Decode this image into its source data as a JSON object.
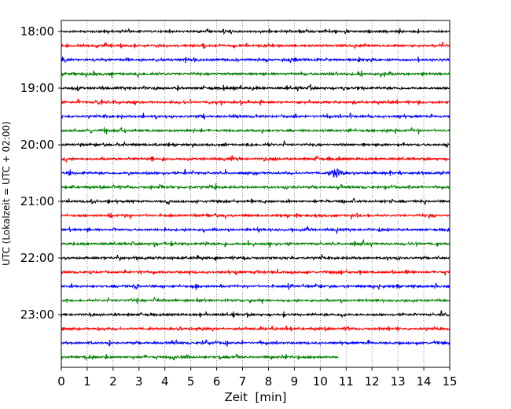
{
  "chart_data": {
    "type": "line",
    "subtype": "helicorder",
    "title": "",
    "xlabel": "Zeit  [min]",
    "ylabel": "UTC (Lokalzeit = UTC + 02:00)",
    "xlim": [
      0,
      15
    ],
    "x_ticks": [
      0,
      1,
      2,
      3,
      4,
      5,
      6,
      7,
      8,
      9,
      10,
      11,
      12,
      13,
      14,
      15
    ],
    "y_ticks": [
      "18:00",
      "19:00",
      "20:00",
      "21:00",
      "22:00",
      "23:00"
    ],
    "grid": "vertical dotted at each minute",
    "legend": "none",
    "colors": [
      "#000000",
      "#ff0000",
      "#0000ff",
      "#008000"
    ],
    "trace_start": "18:00",
    "trace_interval_minutes": 15,
    "traces": [
      {
        "start": "18:00",
        "color": "#000000",
        "duration_min": 15
      },
      {
        "start": "18:15",
        "color": "#ff0000",
        "duration_min": 15
      },
      {
        "start": "18:30",
        "color": "#0000ff",
        "duration_min": 15
      },
      {
        "start": "18:45",
        "color": "#008000",
        "duration_min": 15
      },
      {
        "start": "19:00",
        "color": "#000000",
        "duration_min": 15
      },
      {
        "start": "19:15",
        "color": "#ff0000",
        "duration_min": 15
      },
      {
        "start": "19:30",
        "color": "#0000ff",
        "duration_min": 15
      },
      {
        "start": "19:45",
        "color": "#008000",
        "duration_min": 15
      },
      {
        "start": "20:00",
        "color": "#000000",
        "duration_min": 15
      },
      {
        "start": "20:15",
        "color": "#ff0000",
        "duration_min": 15
      },
      {
        "start": "20:30",
        "color": "#0000ff",
        "duration_min": 15,
        "event_at_min": 10.6
      },
      {
        "start": "20:45",
        "color": "#008000",
        "duration_min": 15
      },
      {
        "start": "21:00",
        "color": "#000000",
        "duration_min": 15
      },
      {
        "start": "21:15",
        "color": "#ff0000",
        "duration_min": 15
      },
      {
        "start": "21:30",
        "color": "#0000ff",
        "duration_min": 15
      },
      {
        "start": "21:45",
        "color": "#008000",
        "duration_min": 15
      },
      {
        "start": "22:00",
        "color": "#000000",
        "duration_min": 15
      },
      {
        "start": "22:15",
        "color": "#ff0000",
        "duration_min": 15
      },
      {
        "start": "22:30",
        "color": "#0000ff",
        "duration_min": 15
      },
      {
        "start": "22:45",
        "color": "#008000",
        "duration_min": 15
      },
      {
        "start": "23:00",
        "color": "#000000",
        "duration_min": 15
      },
      {
        "start": "23:15",
        "color": "#ff0000",
        "duration_min": 15
      },
      {
        "start": "23:30",
        "color": "#0000ff",
        "duration_min": 15
      },
      {
        "start": "23:45",
        "color": "#008000",
        "duration_min": 10.7
      }
    ]
  }
}
